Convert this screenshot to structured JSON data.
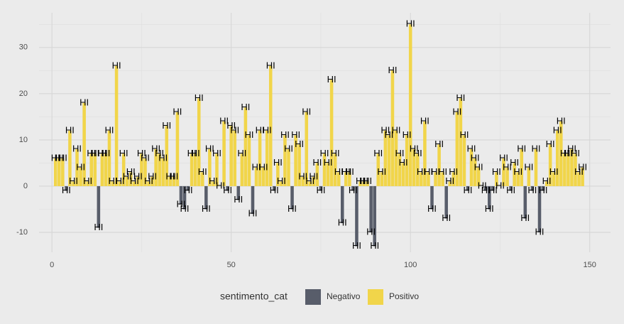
{
  "chart_data": {
    "type": "bar",
    "x": [
      1,
      2,
      3,
      4,
      5,
      6,
      7,
      8,
      9,
      10,
      11,
      12,
      13,
      14,
      15,
      16,
      17,
      18,
      19,
      20,
      21,
      22,
      23,
      24,
      25,
      26,
      27,
      28,
      29,
      30,
      31,
      32,
      33,
      34,
      35,
      36,
      37,
      38,
      39,
      40,
      41,
      42,
      43,
      44,
      45,
      46,
      47,
      48,
      49,
      50,
      51,
      52,
      53,
      54,
      55,
      56,
      57,
      58,
      59,
      60,
      61,
      62,
      63,
      64,
      65,
      66,
      67,
      68,
      69,
      70,
      71,
      72,
      73,
      74,
      75,
      76,
      77,
      78,
      79,
      80,
      81,
      82,
      83,
      84,
      85,
      86,
      87,
      88,
      89,
      90,
      91,
      92,
      93,
      94,
      95,
      96,
      97,
      98,
      99,
      100,
      101,
      102,
      103,
      104,
      105,
      106,
      107,
      108,
      109,
      110,
      111,
      112,
      113,
      114,
      115,
      116,
      117,
      118,
      119,
      120,
      121,
      122,
      123,
      124,
      125,
      126,
      127,
      128,
      129,
      130,
      131,
      132,
      133,
      134,
      135,
      136,
      137,
      138,
      139,
      140,
      141,
      142,
      143,
      144,
      145,
      146,
      147,
      148
    ],
    "values": [
      6,
      6,
      6,
      -1,
      12,
      1,
      8,
      4,
      18,
      1,
      7,
      7,
      -9,
      7,
      7,
      12,
      1,
      26,
      1,
      7,
      2,
      3,
      1,
      2,
      7,
      6,
      1,
      2,
      8,
      7,
      6,
      13,
      2,
      2,
      16,
      -4,
      -5,
      -1,
      7,
      7,
      19,
      3,
      -5,
      8,
      1,
      7,
      0,
      14,
      -1,
      13,
      12,
      -3,
      7,
      17,
      11,
      -6,
      4,
      12,
      4,
      12,
      26,
      -1,
      5,
      1,
      11,
      8,
      -5,
      11,
      9,
      2,
      16,
      1,
      2,
      5,
      -1,
      7,
      5,
      23,
      7,
      3,
      -8,
      3,
      3,
      -1,
      -13,
      1,
      1,
      1,
      -10,
      -13,
      7,
      3,
      12,
      11,
      25,
      12,
      7,
      5,
      11,
      35,
      8,
      7,
      3,
      14,
      3,
      -5,
      3,
      9,
      3,
      -7,
      1,
      3,
      16,
      19,
      11,
      -1,
      8,
      6,
      4,
      0,
      -1,
      -5,
      -1,
      3,
      0,
      6,
      4,
      -1,
      5,
      3,
      8,
      -7,
      4,
      -1,
      8,
      -10,
      -1,
      1,
      9,
      3,
      12,
      14,
      7,
      7,
      8,
      7,
      3,
      4
    ],
    "labels": [
      "HI",
      "HI",
      "HI",
      "HI",
      "HI",
      "HI",
      "HI",
      "HI",
      "HI",
      "HI",
      "HI",
      "HI",
      "HI",
      "HI",
      "HI",
      "HI",
      "HI",
      "HI",
      "HI",
      "HI",
      "HI",
      "HI",
      "HI",
      "HI",
      "HI",
      "HI",
      "HI",
      "HI",
      "HI",
      "HI",
      "HI",
      "HI",
      "HI",
      "HI",
      "HI",
      "HI",
      "HI",
      "HI",
      "HI",
      "HI",
      "HI",
      "HI",
      "HI",
      "HI",
      "HI",
      "HI",
      "HI",
      "HI",
      "HI",
      "HI",
      "HI",
      "HI",
      "HI",
      "HI",
      "HI",
      "HI",
      "HI",
      "HI",
      "HI",
      "HI",
      "HI",
      "HI",
      "HI",
      "HI",
      "HI",
      "HI",
      "HI",
      "HI",
      "HI",
      "HI",
      "HI",
      "HI",
      "HI",
      "HI",
      "HI",
      "HI",
      "HI",
      "HI",
      "HI",
      "HI",
      "HI",
      "HI",
      "HI",
      "HI",
      "HI",
      "HI",
      "HI",
      "HI",
      "HI",
      "HI",
      "HI",
      "HI",
      "HI",
      "HI",
      "HI",
      "HI",
      "HI",
      "HI",
      "HI",
      "HI",
      "HI",
      "HI",
      "HI",
      "HI",
      "HI",
      "HI",
      "HI",
      "HI",
      "HI",
      "HI",
      "HI",
      "HI",
      "HI",
      "HI",
      "HI",
      "HI",
      "HI",
      "HI",
      "HI",
      "HI",
      "HI",
      "HI",
      "HI",
      "HI",
      "HI",
      "HI",
      "HI",
      "HI",
      "HI",
      "HI",
      "HI",
      "HI",
      "HI",
      "HI",
      "HI",
      "HI",
      "HI",
      "HI",
      "HI",
      "HI",
      "HI",
      "HI",
      "HI",
      "HI",
      "HI",
      "HI",
      "HI",
      "HI"
    ],
    "xlim": [
      -3.6,
      155.8
    ],
    "xticks": [
      0,
      50,
      100,
      150
    ],
    "xminor": [
      25,
      75,
      125
    ],
    "ylim": [
      -14.3,
      37.5
    ],
    "yticks": [
      -10,
      0,
      10,
      20,
      30
    ],
    "yminor": [
      -5,
      5,
      15,
      25,
      35
    ],
    "grid": true,
    "legend": {
      "title": "sentimento_cat",
      "position": "bottom",
      "items": [
        {
          "name": "Negativo",
          "color": "#585d6a"
        },
        {
          "name": "Positivo",
          "color": "#f1d54a"
        }
      ]
    }
  }
}
